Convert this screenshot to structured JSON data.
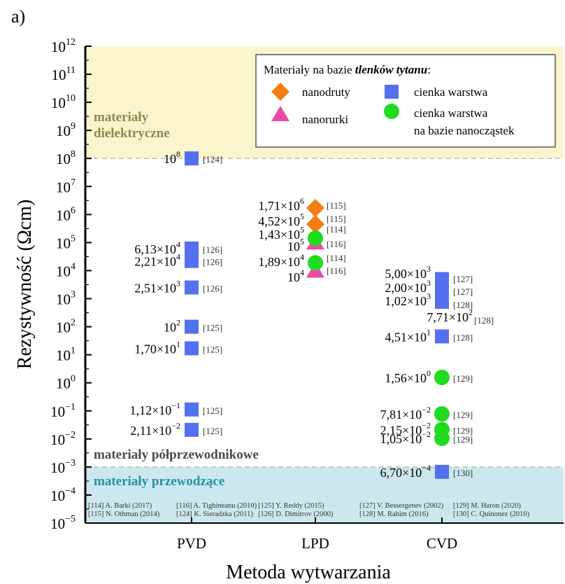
{
  "panel_label": "a)",
  "legend": {
    "title_prefix": "Materiały na bazie ",
    "title_emph": "tlenków tytanu",
    "title_suffix": ":",
    "items": [
      {
        "label": "nanodruty",
        "marker": "diamond",
        "color": "#f47e12"
      },
      {
        "label": "nanorurki",
        "marker": "triangle",
        "color": "#ee4aa9"
      },
      {
        "label": "cienka warstwa",
        "marker": "square",
        "color": "#5570ee"
      },
      {
        "label": "cienka warstwa",
        "label2": "na bazie nanocząstek",
        "marker": "circle",
        "color": "#1fdc1f"
      }
    ]
  },
  "regions": {
    "dielectric": {
      "label1": "materiały",
      "label2": "dielektryczne",
      "color": "#faf5cc",
      "text_color": "#8e8a4c"
    },
    "semiconducting": {
      "label": "materiały półprzewodnikowe",
      "text_color": "#4b4b4b"
    },
    "conducting": {
      "label": "materiały przewodzące",
      "color": "#cce8ef",
      "text_color": "#2a8fa0"
    }
  },
  "footer_refs": [
    [
      "[114] A. Barki (2017)",
      "[115] N. Othman (2014)"
    ],
    [
      "[116] A. Tighineanu (2010)",
      "[124] K. Sieradzka (2011)"
    ],
    [
      "[125] Y. Reddy (2015)",
      "[126] D. Dimitrov (2000)"
    ],
    [
      "[127] V. Bessergenev (2002)",
      "[128] M. Rahim (2016)"
    ],
    [
      "[129] M. Haron (2020)",
      "[130] C. Quinonez (2010)"
    ]
  ],
  "chart_data": {
    "type": "scatter",
    "xlabel": "Metoda wytwarzania",
    "ylabel": "Rezystywność (Ωcm)",
    "categories": [
      "PVD",
      "LPD",
      "CVD"
    ],
    "y_scale": "log",
    "ylim_exp": [
      -5,
      12
    ],
    "region_bounds": {
      "dielectric_min": 100000000.0,
      "conducting_max": 0.001
    },
    "points": [
      {
        "cat": "PVD",
        "value": 100000000.0,
        "label_m": "10",
        "label_e": "8",
        "ref": "[124]",
        "marker": "square"
      },
      {
        "cat": "PVD",
        "value": 61300.0,
        "label_m": "6,13×10",
        "label_e": "4",
        "ref": "[126]",
        "marker": "square"
      },
      {
        "cat": "PVD",
        "value": 22100.0,
        "label_m": "2,21×10",
        "label_e": "4",
        "ref": "[126]",
        "marker": "square"
      },
      {
        "cat": "PVD",
        "value": 2510.0,
        "label_m": "2,51×10",
        "label_e": "3",
        "ref": "[126]",
        "marker": "square"
      },
      {
        "cat": "PVD",
        "value": 100.0,
        "label_m": "10",
        "label_e": "2",
        "ref": "[125]",
        "marker": "square"
      },
      {
        "cat": "PVD",
        "value": 17.0,
        "label_m": "1,70×10",
        "label_e": "1",
        "ref": "[125]",
        "marker": "square"
      },
      {
        "cat": "PVD",
        "value": 0.112,
        "label_m": "1,12×10",
        "label_e": "−1",
        "ref": "[125]",
        "marker": "square"
      },
      {
        "cat": "PVD",
        "value": 0.0211,
        "label_m": "2,11×10",
        "label_e": "−2",
        "ref": "[125]",
        "marker": "square"
      },
      {
        "cat": "LPD",
        "value": 1710000.0,
        "label_m": "1,71×10",
        "label_e": "6",
        "ref": "[115]",
        "marker": "diamond"
      },
      {
        "cat": "LPD",
        "value": 452000.0,
        "label_m": "4,52×10",
        "label_e": "5",
        "ref": "[115]",
        "marker": "diamond"
      },
      {
        "cat": "LPD",
        "value": 143000.0,
        "label_m": "1,43×10",
        "label_e": "5",
        "ref": "[114]",
        "marker": "circle"
      },
      {
        "cat": "LPD",
        "value": 100000.0,
        "label_m": "10",
        "label_e": "5",
        "ref": "[116]",
        "marker": "triangle"
      },
      {
        "cat": "LPD",
        "value": 18900.0,
        "label_m": "1,89×10",
        "label_e": "4",
        "ref": "[114]",
        "marker": "circle"
      },
      {
        "cat": "LPD",
        "value": 10000.0,
        "label_m": "10",
        "label_e": "4",
        "ref": "[116]",
        "marker": "triangle"
      },
      {
        "cat": "CVD",
        "value": 5000.0,
        "label_m": "5,00×10",
        "label_e": "3",
        "ref": "[127]",
        "marker": "square"
      },
      {
        "cat": "CVD",
        "value": 2000.0,
        "label_m": "2,00×10",
        "label_e": "3",
        "ref": "[127]",
        "marker": "square"
      },
      {
        "cat": "CVD",
        "value": 1020.0,
        "label_m": "1,02×10",
        "label_e": "3",
        "ref": "[128]",
        "marker": "square"
      },
      {
        "cat": "CVD",
        "value": 771.0,
        "label_m": "7,71×10",
        "label_e": "2",
        "ref": "[128]",
        "marker": "square"
      },
      {
        "cat": "CVD",
        "value": 45.1,
        "label_m": "4,51×10",
        "label_e": "1",
        "ref": "[128]",
        "marker": "square"
      },
      {
        "cat": "CVD",
        "value": 1.56,
        "label_m": "1,56×10",
        "label_e": "0",
        "ref": "[129]",
        "marker": "circle"
      },
      {
        "cat": "CVD",
        "value": 0.0781,
        "label_m": "7,81×10",
        "label_e": "−2",
        "ref": "[129]",
        "marker": "circle"
      },
      {
        "cat": "CVD",
        "value": 0.0215,
        "label_m": "2,15×10",
        "label_e": "−2",
        "ref": "[129]",
        "marker": "circle"
      },
      {
        "cat": "CVD",
        "value": 0.0105,
        "label_m": "1,05×10",
        "label_e": "−2",
        "ref": "[129]",
        "marker": "circle"
      },
      {
        "cat": "CVD",
        "value": 0.00067,
        "label_m": "6,70×10",
        "label_e": "−4",
        "ref": "[130]",
        "marker": "square"
      }
    ]
  }
}
